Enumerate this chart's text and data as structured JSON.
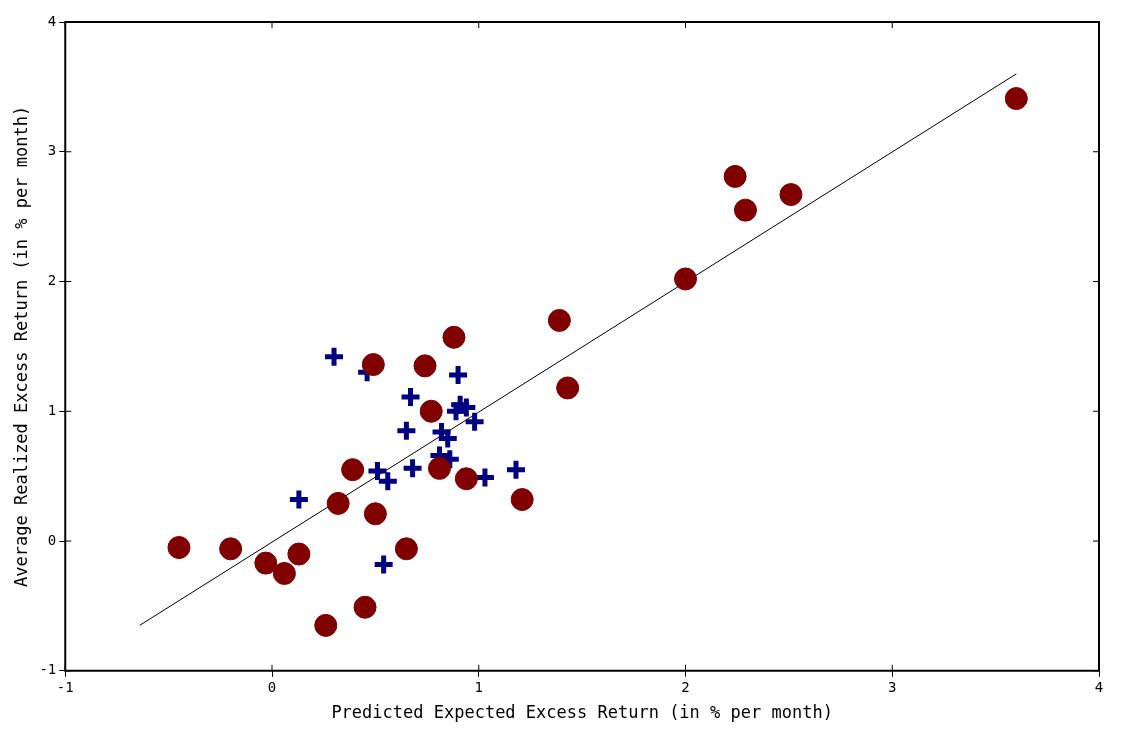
{
  "chart_data": {
    "type": "scatter",
    "xlabel": "Predicted Expected Excess Return (in % per month)",
    "ylabel": "Average Realized Excess Return (in % per month)",
    "xlim": [
      -1,
      4
    ],
    "ylim": [
      -1,
      4
    ],
    "xticks": [
      -1,
      0,
      1,
      2,
      3,
      4
    ],
    "yticks": [
      -1,
      0,
      1,
      2,
      3,
      4
    ],
    "grid": false,
    "legend": false,
    "series": [
      {
        "marker": "circle",
        "color": "#800000",
        "x": [
          -0.45,
          -0.2,
          -0.03,
          0.06,
          0.13,
          0.26,
          0.32,
          0.39,
          0.45,
          0.49,
          0.5,
          0.65,
          0.74,
          0.77,
          0.81,
          0.88,
          0.94,
          1.21,
          1.39,
          1.43,
          2.0,
          2.24,
          2.29,
          2.51,
          3.6
        ],
        "values": [
          -0.05,
          -0.06,
          -0.17,
          -0.25,
          -0.1,
          -0.65,
          0.29,
          0.55,
          -0.51,
          1.36,
          0.21,
          -0.06,
          1.35,
          1.0,
          0.56,
          1.57,
          0.48,
          0.32,
          1.7,
          1.18,
          2.02,
          2.81,
          2.55,
          2.67,
          3.41
        ]
      },
      {
        "marker": "cross",
        "color": "#000080",
        "x": [
          0.3,
          0.46,
          0.9,
          0.67,
          0.91,
          0.89,
          0.94,
          0.98,
          0.65,
          0.82,
          0.85,
          0.81,
          0.86,
          0.51,
          0.56,
          0.68,
          1.03,
          1.18,
          0.13,
          0.54
        ],
        "values": [
          1.42,
          1.3,
          1.28,
          1.11,
          1.05,
          1.0,
          1.03,
          0.92,
          0.85,
          0.84,
          0.79,
          0.66,
          0.63,
          0.54,
          0.46,
          0.56,
          0.49,
          0.55,
          0.32,
          -0.18
        ]
      },
      {
        "type": "line",
        "marker": "none",
        "color": "#000000",
        "x": [
          -0.64,
          3.6
        ],
        "values": [
          -0.65,
          3.6
        ]
      }
    ]
  }
}
